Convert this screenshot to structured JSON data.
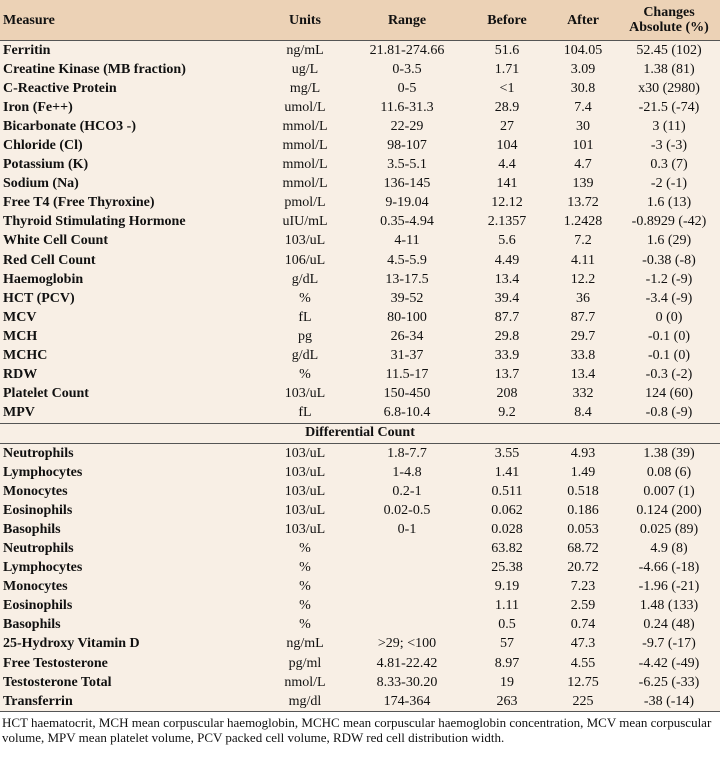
{
  "table": {
    "header": [
      "Measure",
      "Units",
      "Range",
      "Before",
      "After",
      "Changes Absolute (%)"
    ],
    "rows": [
      [
        "Ferritin",
        "ng/mL",
        "21.81-274.66",
        "51.6",
        "104.05",
        "52.45 (102)"
      ],
      [
        "Creatine Kinase (MB fraction)",
        "ug/L",
        "0-3.5",
        "1.71",
        "3.09",
        "1.38 (81)"
      ],
      [
        "C-Reactive Protein",
        "mg/L",
        "0-5",
        "<1",
        "30.8",
        "x30 (2980)"
      ],
      [
        "Iron (Fe++)",
        "umol/L",
        "11.6-31.3",
        "28.9",
        "7.4",
        "-21.5 (-74)"
      ],
      [
        "Bicarbonate (HCO3 -)",
        "mmol/L",
        "22-29",
        "27",
        "30",
        "3 (11)"
      ],
      [
        "Chloride (Cl)",
        "mmol/L",
        "98-107",
        "104",
        "101",
        "-3 (-3)"
      ],
      [
        "Potassium (K)",
        "mmol/L",
        "3.5-5.1",
        "4.4",
        "4.7",
        "0.3 (7)"
      ],
      [
        "Sodium (Na)",
        "mmol/L",
        "136-145",
        "141",
        "139",
        "-2 (-1)"
      ],
      [
        "Free T4 (Free Thyroxine)",
        "pmol/L",
        "9-19.04",
        "12.12",
        "13.72",
        "1.6 (13)"
      ],
      [
        "Thyroid Stimulating Hormone",
        "uIU/mL",
        "0.35-4.94",
        "2.1357",
        "1.2428",
        "-0.8929 (-42)"
      ],
      [
        "White Cell Count",
        "103/uL",
        "4-11",
        "5.6",
        "7.2",
        "1.6 (29)"
      ],
      [
        "Red Cell Count",
        "106/uL",
        "4.5-5.9",
        "4.49",
        "4.11",
        "-0.38 (-8)"
      ],
      [
        "Haemoglobin",
        "g/dL",
        "13-17.5",
        "13.4",
        "12.2",
        "-1.2 (-9)"
      ],
      [
        "HCT (PCV)",
        "%",
        "39-52",
        "39.4",
        "36",
        "-3.4 (-9)"
      ],
      [
        "MCV",
        "fL",
        "80-100",
        "87.7",
        "87.7",
        "0 (0)"
      ],
      [
        "MCH",
        "pg",
        "26-34",
        "29.8",
        "29.7",
        "-0.1 (0)"
      ],
      [
        "MCHC",
        "g/dL",
        "31-37",
        "33.9",
        "33.8",
        "-0.1 (0)"
      ],
      [
        "RDW",
        "%",
        "11.5-17",
        "13.7",
        "13.4",
        "-0.3 (-2)"
      ],
      [
        "Platelet Count",
        "103/uL",
        "150-450",
        "208",
        "332",
        "124 (60)"
      ],
      [
        "MPV",
        "fL",
        "6.8-10.4",
        "9.2",
        "8.4",
        "-0.8 (-9)"
      ]
    ],
    "section_title": "Differential Count",
    "section_rows": [
      [
        "Neutrophils",
        "103/uL",
        "1.8-7.7",
        "3.55",
        "4.93",
        "1.38 (39)"
      ],
      [
        "Lymphocytes",
        "103/uL",
        "1-4.8",
        "1.41",
        "1.49",
        "0.08 (6)"
      ],
      [
        "Monocytes",
        "103/uL",
        "0.2-1",
        "0.511",
        "0.518",
        "0.007 (1)"
      ],
      [
        "Eosinophils",
        "103/uL",
        "0.02-0.5",
        "0.062",
        "0.186",
        "0.124 (200)"
      ],
      [
        "Basophils",
        "103/uL",
        "0-1",
        "0.028",
        "0.053",
        "0.025 (89)"
      ],
      [
        "Neutrophils",
        "%",
        null,
        "63.82",
        "68.72",
        "4.9 (8)"
      ],
      [
        "Lymphocytes",
        "%",
        null,
        "25.38",
        "20.72",
        "-4.66 (-18)"
      ],
      [
        "Monocytes",
        "%",
        null,
        "9.19",
        "7.23",
        "-1.96 (-21)"
      ],
      [
        "Eosinophils",
        "%",
        null,
        "1.11",
        "2.59",
        "1.48 (133)"
      ],
      [
        "Basophils",
        "%",
        null,
        "0.5",
        "0.74",
        "0.24 (48)"
      ],
      [
        "25-Hydroxy Vitamin D",
        "ng/mL",
        ">29; <100",
        "57",
        "47.3",
        "-9.7 (-17)"
      ],
      [
        "Free Testosterone",
        "pg/ml",
        "4.81-22.42",
        "8.97",
        "4.55",
        "-4.42 (-49)"
      ],
      [
        "Testosterone Total",
        "nmol/L",
        "8.33-30.20",
        "19",
        "12.75",
        "-6.25 (-33)"
      ],
      [
        "Transferrin",
        "mg/dl",
        "174-364",
        "263",
        "225",
        "-38 (-14)"
      ]
    ]
  },
  "footnote": "HCT haematocrit, MCH mean corpuscular haemoglobin, MCHC mean corpuscular haemoglobin concentration, MCV mean corpuscular volume, MPV mean platelet volume, PCV packed cell volume, RDW red cell distribution width."
}
